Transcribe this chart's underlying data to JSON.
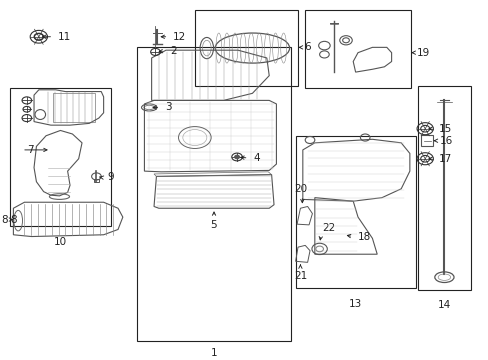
{
  "bg_color": "#ffffff",
  "fig_width": 4.89,
  "fig_height": 3.6,
  "dpi": 100,
  "font_size": 7.5,
  "lc": "#222222",
  "lw": 0.8,
  "boxes": {
    "10": [
      0.005,
      0.365,
      0.215,
      0.755
    ],
    "1": [
      0.27,
      0.04,
      0.59,
      0.87
    ],
    "6": [
      0.39,
      0.76,
      0.605,
      0.975
    ],
    "19": [
      0.62,
      0.755,
      0.84,
      0.975
    ],
    "13": [
      0.6,
      0.19,
      0.85,
      0.62
    ],
    "14": [
      0.855,
      0.185,
      0.965,
      0.76
    ]
  }
}
